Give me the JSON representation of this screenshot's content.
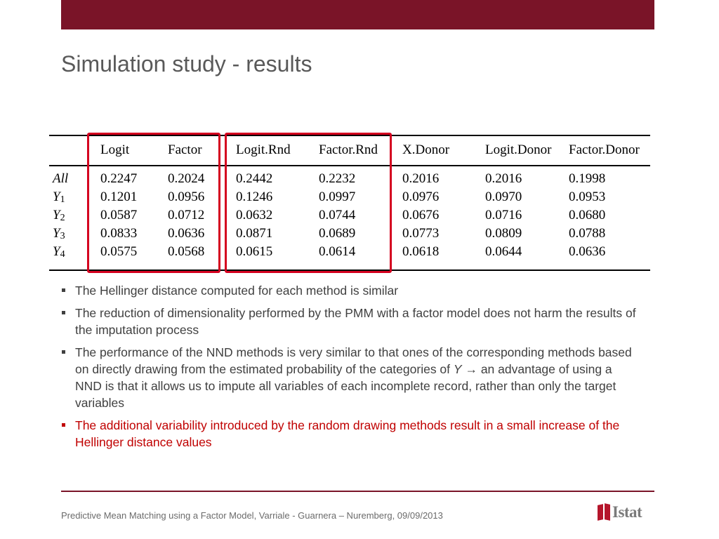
{
  "slide": {
    "title": "Simulation study - results",
    "footer": "Predictive Mean Matching using a Factor Model, Varriale - Guarnera – Nuremberg, 09/09/2013",
    "logo_text": "Istat",
    "colors": {
      "brand": "#7a1428",
      "highlight": "#d4001f",
      "red_text": "#c00000"
    }
  },
  "table": {
    "headers": [
      "Logit",
      "Factor",
      "Logit.Rnd",
      "Factor.Rnd",
      "X.Donor",
      "Logit.Donor",
      "Factor.Donor"
    ],
    "rows": [
      {
        "label": "All",
        "sub": "",
        "values": [
          "0.2247",
          "0.2024",
          "0.2442",
          "0.2232",
          "0.2016",
          "0.2016",
          "0.1998"
        ]
      },
      {
        "label": "Y",
        "sub": "1",
        "values": [
          "0.1201",
          "0.0956",
          "0.1246",
          "0.0997",
          "0.0976",
          "0.0970",
          "0.0953"
        ]
      },
      {
        "label": "Y",
        "sub": "2",
        "values": [
          "0.0587",
          "0.0712",
          "0.0632",
          "0.0744",
          "0.0676",
          "0.0716",
          "0.0680"
        ]
      },
      {
        "label": "Y",
        "sub": "3",
        "values": [
          "0.0833",
          "0.0636",
          "0.0871",
          "0.0689",
          "0.0773",
          "0.0809",
          "0.0788"
        ]
      },
      {
        "label": "Y",
        "sub": "4",
        "values": [
          "0.0575",
          "0.0568",
          "0.0615",
          "0.0614",
          "0.0618",
          "0.0644",
          "0.0636"
        ]
      }
    ]
  },
  "bullets": {
    "b1": "The Hellinger distance computed for each method is similar",
    "b2": "The reduction of dimensionality performed by the PMM with a factor model does not harm the results of the imputation process",
    "b3_part1": "The performance of the NND methods is very similar to that ones of the corresponding methods based on directly drawing from the estimated probability of the categories of ",
    "b3_var": "Y",
    "b3_arrow": "→",
    "b3_part2": "an advantage of using a NND is that it allows us to impute all variables of each incomplete record, rather than only the target variables",
    "b4": "The additional variability introduced by the random drawing methods result in a small increase of the Hellinger distance values"
  }
}
